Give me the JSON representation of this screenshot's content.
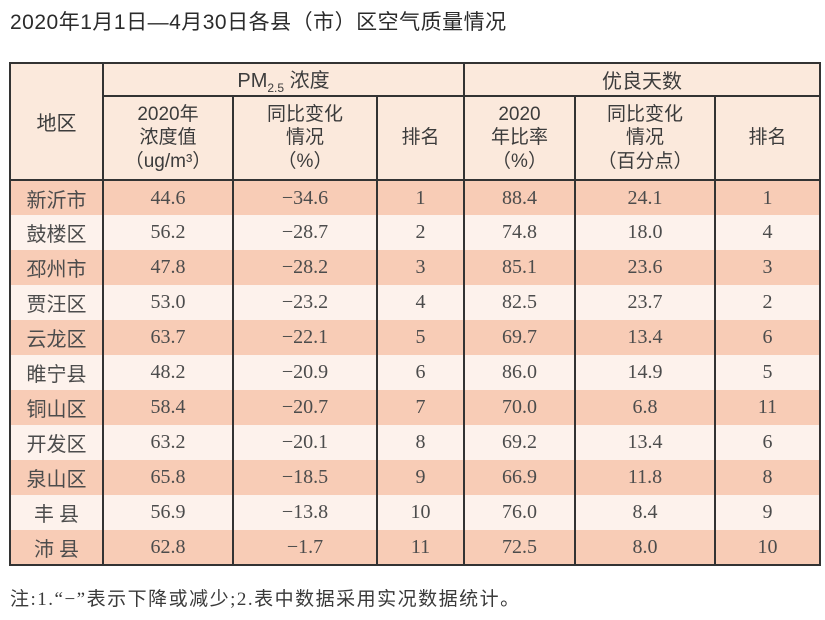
{
  "page": {
    "title": "2020年1月1日—4月30日各县（市）区空气质量情况",
    "footnote": "注:1.“−”表示下降或减少;2.表中数据采用实况数据统计。"
  },
  "colors": {
    "row_odd_bg": "#f8ccb6",
    "row_even_bg": "#fdf2ec",
    "header_bg": "#fbe9dc",
    "grid_border": "#333333",
    "text": "#4c4c4c"
  },
  "table": {
    "header": {
      "region": "地区",
      "pm_prefix": "PM",
      "pm_subscript": "2.5",
      "pm_suffix": " 浓度",
      "good_days_group": "优良天数",
      "pm_value": "2020年\n浓度值\n（ug/m³）",
      "pm_change": "同比变化\n情况\n（%）",
      "pm_rank": "排名",
      "good_ratio": "2020\n年比率\n（%）",
      "good_change": "同比变化\n情况\n（百分点）",
      "good_rank": "排名"
    },
    "rows": [
      {
        "region": "新沂市",
        "pm_value": "44.6",
        "pm_change": "−34.6",
        "pm_rank": "1",
        "good_ratio": "88.4",
        "good_change": "24.1",
        "good_rank": "1"
      },
      {
        "region": "鼓楼区",
        "pm_value": "56.2",
        "pm_change": "−28.7",
        "pm_rank": "2",
        "good_ratio": "74.8",
        "good_change": "18.0",
        "good_rank": "4"
      },
      {
        "region": "邳州市",
        "pm_value": "47.8",
        "pm_change": "−28.2",
        "pm_rank": "3",
        "good_ratio": "85.1",
        "good_change": "23.6",
        "good_rank": "3"
      },
      {
        "region": "贾汪区",
        "pm_value": "53.0",
        "pm_change": "−23.2",
        "pm_rank": "4",
        "good_ratio": "82.5",
        "good_change": "23.7",
        "good_rank": "2"
      },
      {
        "region": "云龙区",
        "pm_value": "63.7",
        "pm_change": "−22.1",
        "pm_rank": "5",
        "good_ratio": "69.7",
        "good_change": "13.4",
        "good_rank": "6"
      },
      {
        "region": "睢宁县",
        "pm_value": "48.2",
        "pm_change": "−20.9",
        "pm_rank": "6",
        "good_ratio": "86.0",
        "good_change": "14.9",
        "good_rank": "5"
      },
      {
        "region": "铜山区",
        "pm_value": "58.4",
        "pm_change": "−20.7",
        "pm_rank": "7",
        "good_ratio": "70.0",
        "good_change": "6.8",
        "good_rank": "11"
      },
      {
        "region": "开发区",
        "pm_value": "63.2",
        "pm_change": "−20.1",
        "pm_rank": "8",
        "good_ratio": "69.2",
        "good_change": "13.4",
        "good_rank": "6"
      },
      {
        "region": "泉山区",
        "pm_value": "65.8",
        "pm_change": "−18.5",
        "pm_rank": "9",
        "good_ratio": "66.9",
        "good_change": "11.8",
        "good_rank": "8"
      },
      {
        "region": "丰 县",
        "pm_value": "56.9",
        "pm_change": "−13.8",
        "pm_rank": "10",
        "good_ratio": "76.0",
        "good_change": "8.4",
        "good_rank": "9"
      },
      {
        "region": "沛 县",
        "pm_value": "62.8",
        "pm_change": "−1.7",
        "pm_rank": "11",
        "good_ratio": "72.5",
        "good_change": "8.0",
        "good_rank": "10"
      }
    ]
  }
}
